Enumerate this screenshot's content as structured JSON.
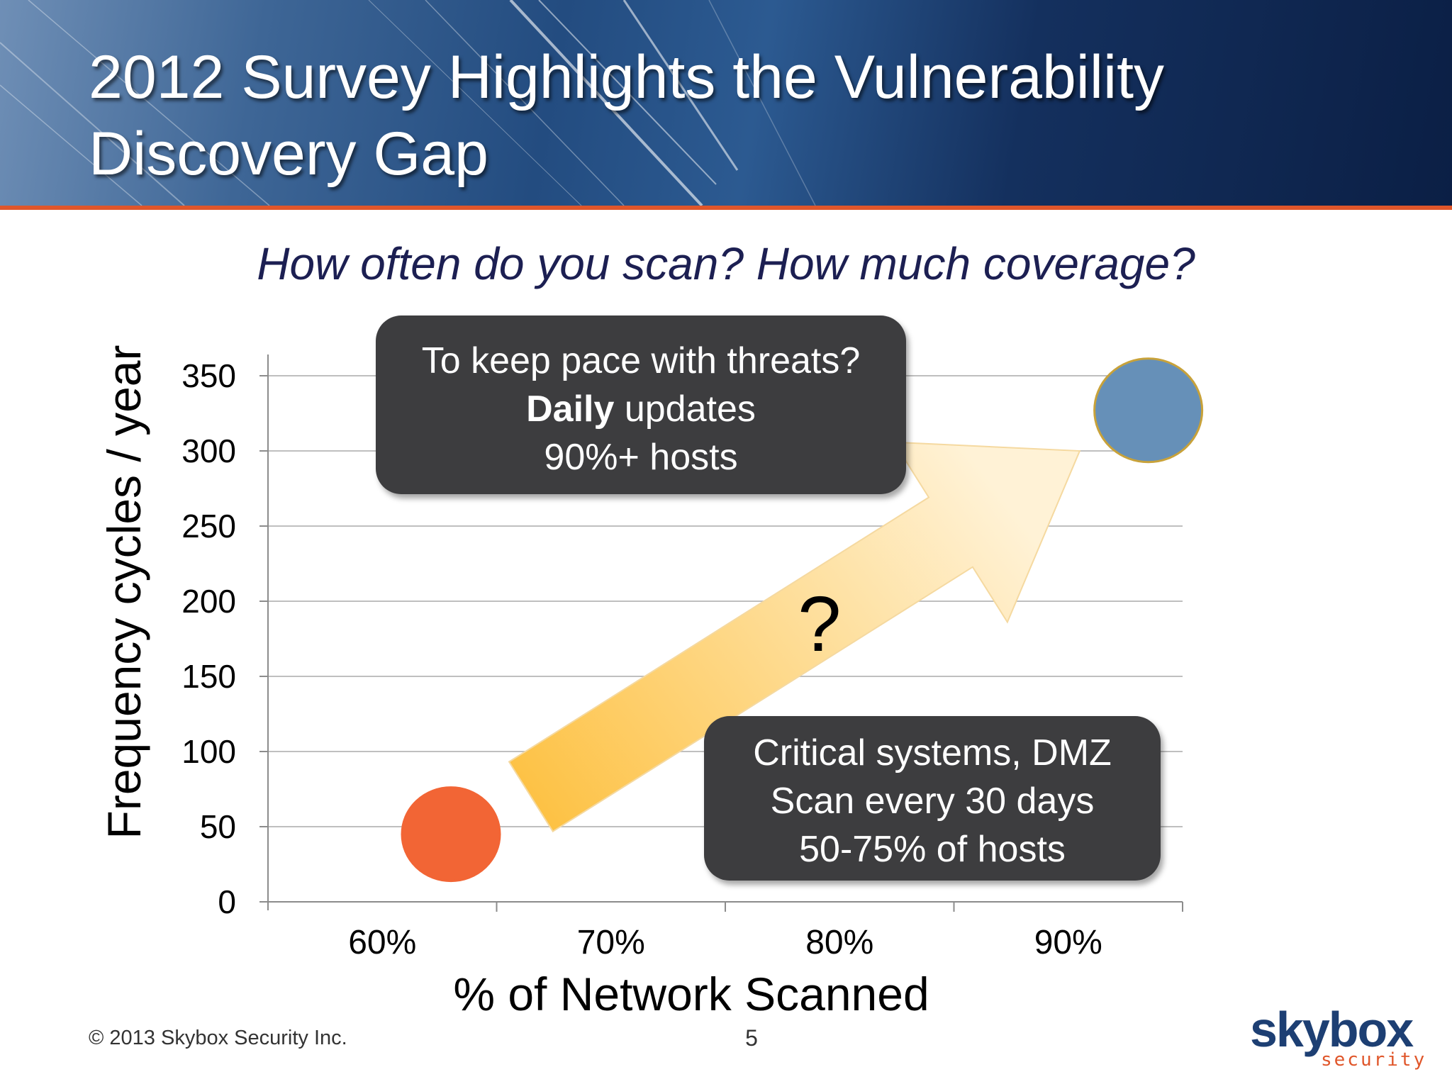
{
  "header": {
    "title": "2012 Survey Highlights the Vulnerability Discovery Gap"
  },
  "subtitle": "How often do you scan?  How much coverage?",
  "colors": {
    "accent_rule": "#e0562a",
    "point_low": "#f26535",
    "point_high": "#6690b8",
    "arrow_start": "#fdbf3c",
    "arrow_end": "#fff2d6",
    "callout_bg": "#3d3d3f"
  },
  "chart_data": {
    "type": "scatter",
    "title": "",
    "xlabel": "% of Network Scanned",
    "ylabel": "Frequency cycles / year",
    "categories": [
      "60%",
      "70%",
      "80%",
      "90%"
    ],
    "yticks": [
      "0",
      "50",
      "100",
      "150",
      "200",
      "250",
      "300",
      "350"
    ],
    "ylim": [
      0,
      350
    ],
    "grid": true,
    "series": [
      {
        "points": [
          {
            "x": 0.63,
            "y": 45,
            "color": "#f26535"
          },
          {
            "x": 0.935,
            "y": 327,
            "color": "#6690b8"
          }
        ]
      }
    ],
    "arrow": {
      "from": {
        "x": 0.665,
        "y": 70
      },
      "to": {
        "x": 0.905,
        "y": 300
      },
      "label": "?"
    }
  },
  "callouts": {
    "top": {
      "line1": "To keep pace with threats?",
      "line2_bold": "Daily",
      "line2_rest": " updates",
      "line3": "90%+ hosts"
    },
    "bottom": {
      "line1": "Critical systems, DMZ",
      "line2": "Scan every 30 days",
      "line3": "50-75% of hosts"
    }
  },
  "footer": {
    "copyright": "© 2013 Skybox Security Inc.",
    "page_number": "5"
  },
  "logo": {
    "word": "skybox",
    "sub": "security"
  }
}
